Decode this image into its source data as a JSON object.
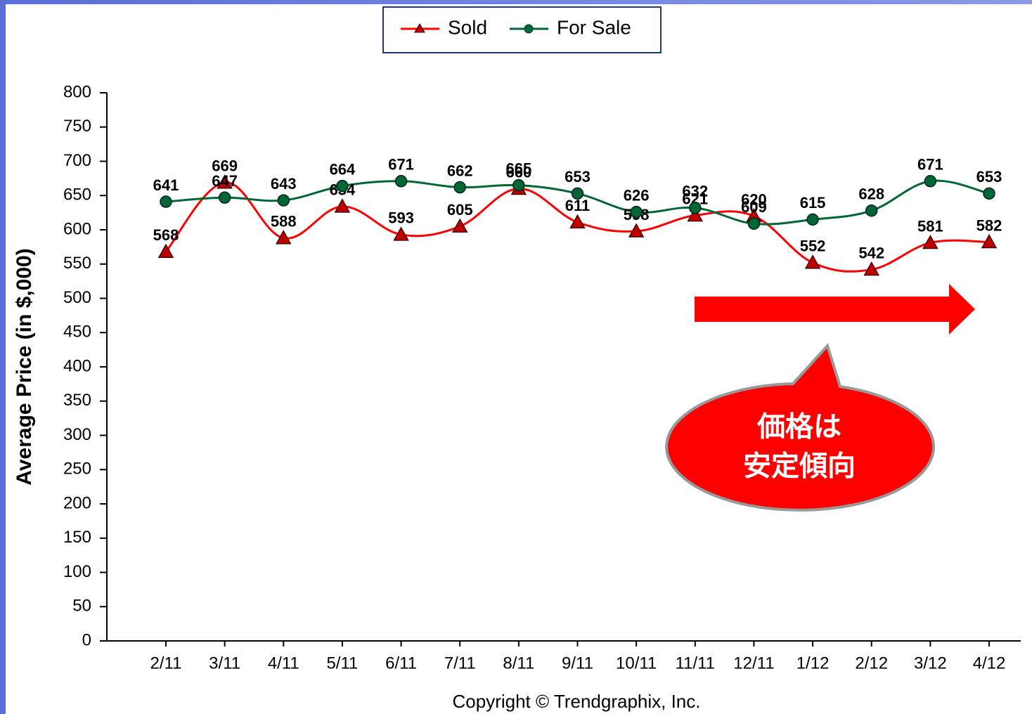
{
  "chart_data": {
    "type": "line",
    "y_label": "Average Price (in $,000)",
    "copyright": "Copyright © Trendgraphix, Inc.",
    "categories": [
      "2/11",
      "3/11",
      "4/11",
      "5/11",
      "6/11",
      "7/11",
      "8/11",
      "9/11",
      "10/11",
      "11/11",
      "12/11",
      "1/12",
      "2/12",
      "3/12",
      "4/12"
    ],
    "series": [
      {
        "name": "Sold",
        "color": "#ff0000",
        "marker_color": "#c00000",
        "marker": "triangle",
        "values": [
          568,
          669,
          588,
          634,
          593,
          605,
          660,
          611,
          598,
          621,
          620,
          552,
          542,
          581,
          582
        ]
      },
      {
        "name": "For Sale",
        "color": "#006633",
        "marker_color": "#006633",
        "marker": "circle",
        "values": [
          641,
          647,
          643,
          664,
          671,
          662,
          665,
          653,
          626,
          632,
          609,
          615,
          628,
          671,
          653
        ]
      }
    ],
    "ylim": [
      0,
      800
    ],
    "yticks": [
      0,
      50,
      100,
      150,
      200,
      250,
      300,
      350,
      400,
      450,
      500,
      550,
      600,
      650,
      700,
      750,
      800
    ],
    "legend": "top",
    "annotation": {
      "lines": [
        "価格は",
        "安定傾向"
      ],
      "color": "#ff0000"
    }
  }
}
